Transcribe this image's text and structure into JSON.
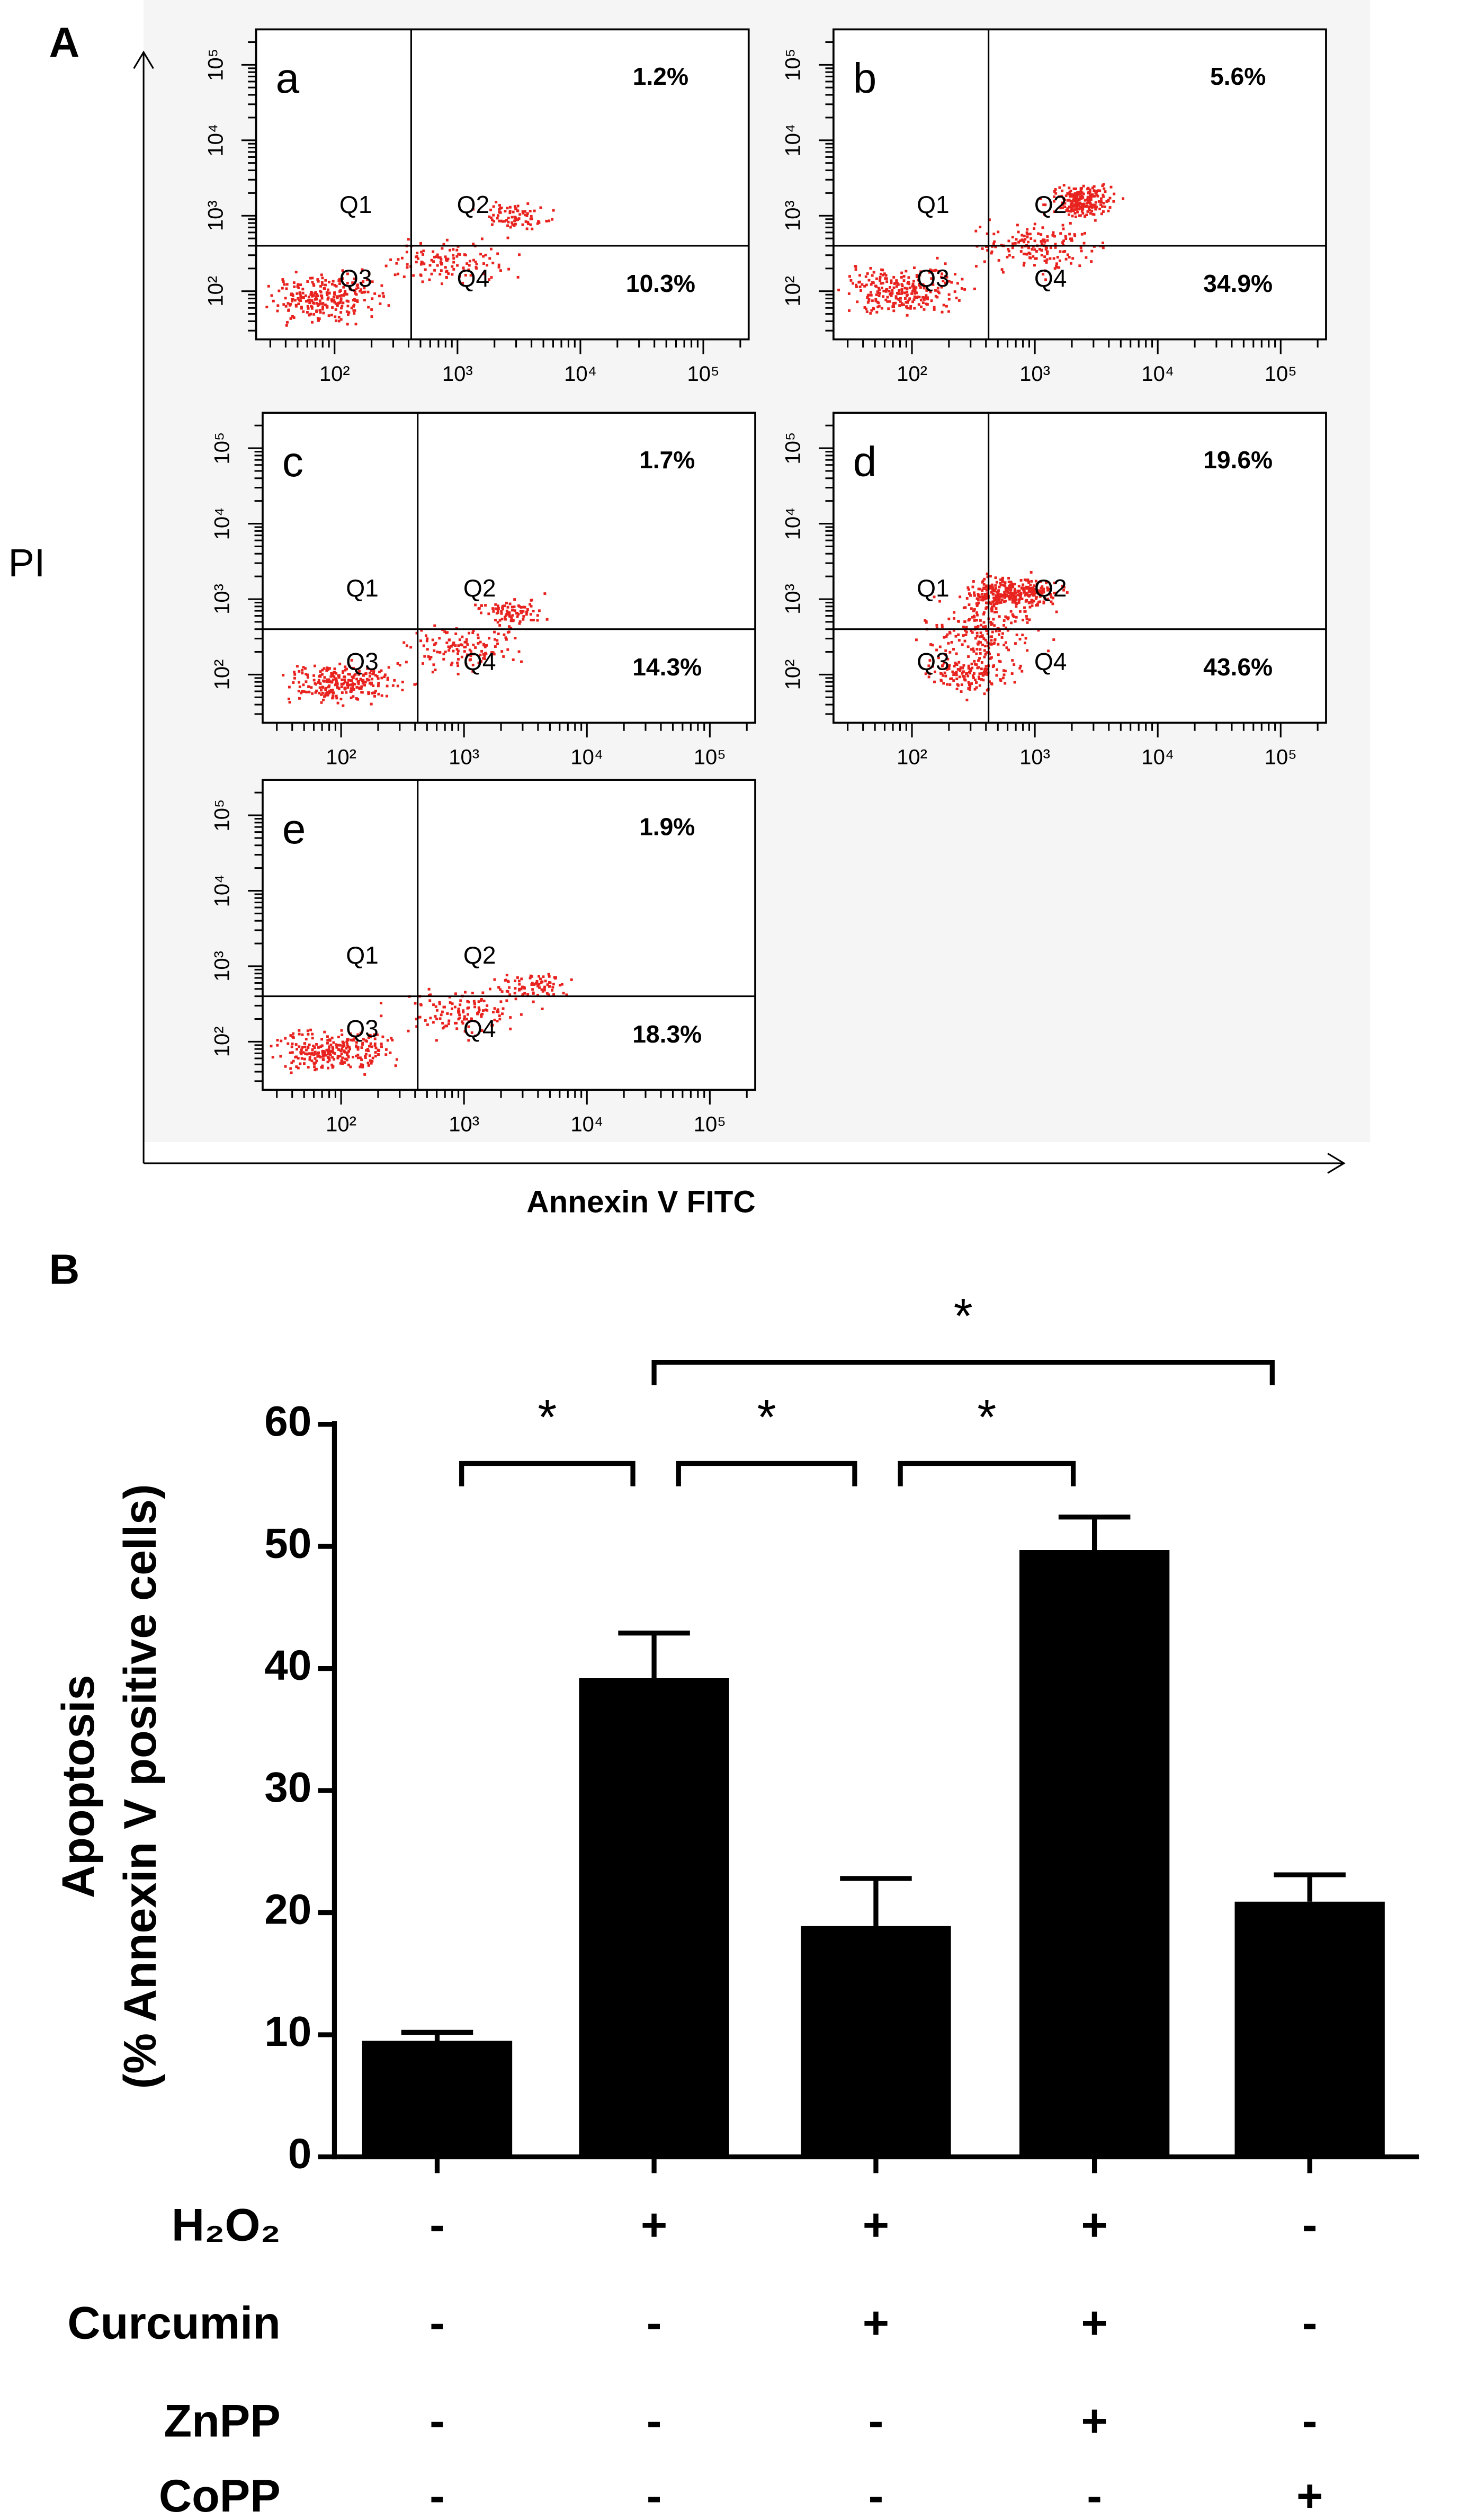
{
  "chart_data": [
    {
      "type": "flow",
      "panel_label": "A",
      "x_label": "Annexin V FITC",
      "y_label": "PI",
      "log_x": true,
      "log_y": true,
      "xlim": [
        23,
        234000
      ],
      "ylim": [
        23,
        295000
      ],
      "xticks": [
        {
          "value": 100,
          "label": "10²"
        },
        {
          "value": 1000,
          "label": "10³"
        },
        {
          "value": 10000,
          "label": "10⁴"
        },
        {
          "value": 100000,
          "label": "10⁵"
        }
      ],
      "yticks": [
        {
          "value": 100,
          "label": "10²"
        },
        {
          "value": 1000,
          "label": "10³"
        },
        {
          "value": 10000,
          "label": "10⁴"
        },
        {
          "value": 100000,
          "label": "10⁵"
        }
      ],
      "gate": [
        420,
        400
      ],
      "quadrants": [
        "Q1",
        "Q2",
        "Q3",
        "Q4"
      ],
      "color": "#e8231f",
      "panels": [
        {
          "label": "a",
          "values": [
            1.2,
            10.3
          ],
          "value_labels": [
            "1.2%",
            "10.3%"
          ]
        },
        {
          "label": "b",
          "values": [
            5.6,
            34.9
          ],
          "value_labels": [
            "5.6%",
            "34.9%"
          ]
        },
        {
          "label": "c",
          "values": [
            1.7,
            14.3
          ],
          "value_labels": [
            "1.7%",
            "14.3%"
          ]
        },
        {
          "label": "d",
          "values": [
            19.6,
            43.6
          ],
          "value_labels": [
            "19.6%",
            "43.6%"
          ]
        },
        {
          "label": "e",
          "values": [
            1.9,
            18.3
          ],
          "value_labels": [
            "1.9%",
            "18.3%"
          ]
        }
      ]
    },
    {
      "type": "bar",
      "panel_label": "B",
      "y_label": [
        "Apoptosis",
        "(% Annexin V positive cells)"
      ],
      "ylim": [
        0,
        60
      ],
      "yticks": [
        0,
        10,
        20,
        30,
        40,
        50,
        60
      ],
      "values": [
        9.5,
        39.2,
        18.9,
        49.7,
        20.9
      ],
      "errors": [
        0.7,
        3.7,
        3.9,
        2.7,
        2.2
      ],
      "color": "#000000",
      "conditions": [
        {
          "name": "H₂O₂",
          "signs": [
            "-",
            "+",
            "+",
            "+",
            "-"
          ]
        },
        {
          "name": "Curcumin",
          "signs": [
            "-",
            "-",
            "+",
            "+",
            "-"
          ]
        },
        {
          "name": "ZnPP",
          "signs": [
            "-",
            "-",
            "-",
            "+",
            "-"
          ]
        },
        {
          "name": "CoPP",
          "signs": [
            "-",
            "-",
            "-",
            "-",
            "+"
          ]
        }
      ],
      "annotations": [
        {
          "text": "*",
          "from": 0,
          "to": 1
        },
        {
          "text": "*",
          "from": 1,
          "to": 2
        },
        {
          "text": "*",
          "from": 2,
          "to": 3
        },
        {
          "text": "*",
          "from": 1,
          "to": 4
        }
      ]
    }
  ]
}
